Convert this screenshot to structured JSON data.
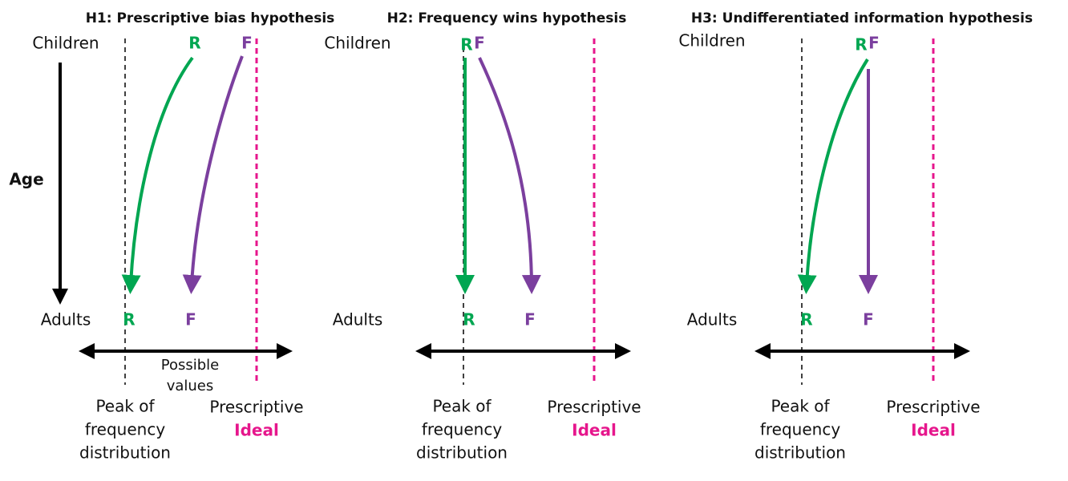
{
  "age_label": "Age",
  "possible_values": [
    "Possible",
    "values"
  ],
  "panels": [
    {
      "title": "H1: Prescriptive bias hypothesis",
      "children": "Children",
      "adults": "Adults",
      "top_r": "R",
      "top_f": "F",
      "bottom_r": "R",
      "bottom_f": "F",
      "peak_lines": [
        "Peak of",
        "frequency",
        "distribution"
      ],
      "prescriptive": "Prescriptive",
      "ideal": "Ideal"
    },
    {
      "title": "H2: Frequency wins hypothesis",
      "children": "Children",
      "adults": "Adults",
      "top_r": "R",
      "top_f": "F",
      "bottom_r": "R",
      "bottom_f": "F",
      "peak_lines": [
        "Peak of",
        "frequency",
        "distribution"
      ],
      "prescriptive": "Prescriptive",
      "ideal": "Ideal"
    },
    {
      "title": "H3: Undifferentiated information hypothesis",
      "children": "Children",
      "adults": "Adults",
      "top_r": "R",
      "top_f": "F",
      "bottom_r": "R",
      "bottom_f": "F",
      "peak_lines": [
        "Peak of",
        "frequency",
        "distribution"
      ],
      "prescriptive": "Prescriptive",
      "ideal": "Ideal"
    }
  ]
}
